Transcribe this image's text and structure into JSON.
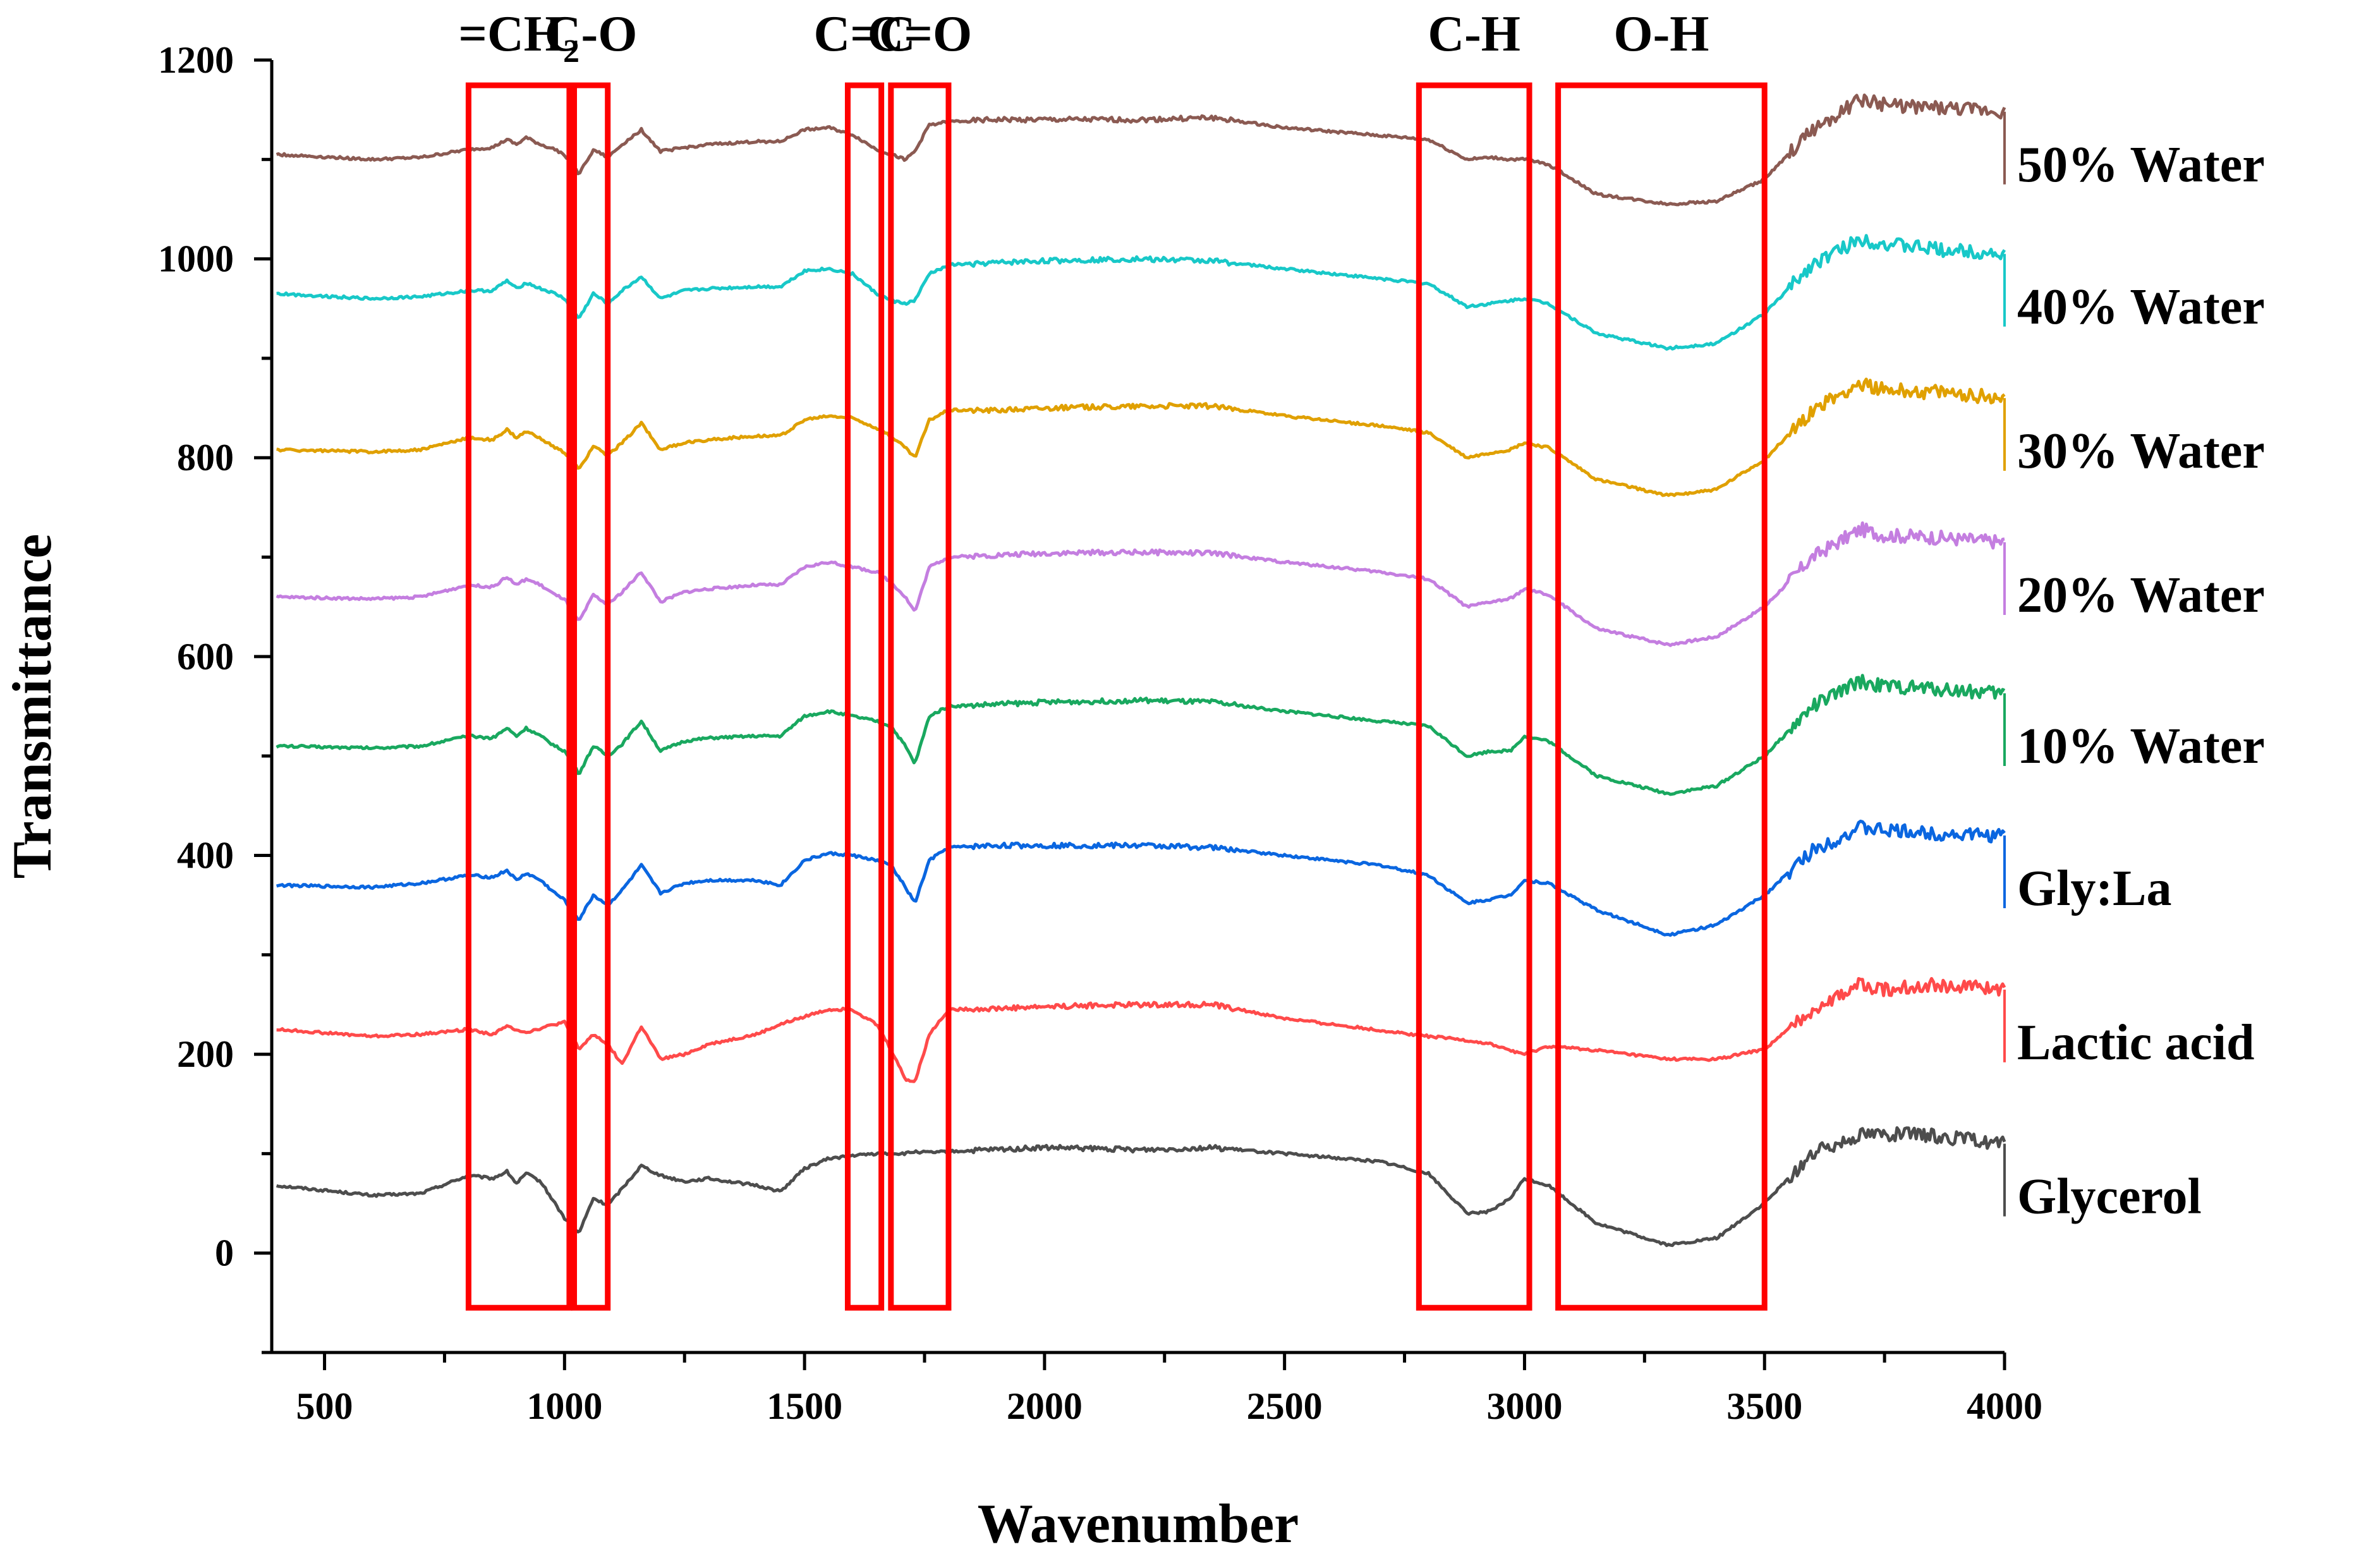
{
  "chart_data": {
    "type": "line",
    "xlabel": "Wavenumber",
    "ylabel": "Transmittance",
    "xlim": [
      390,
      4000
    ],
    "ylim": [
      -100,
      1200
    ],
    "x_ticks": [
      "500",
      "1000",
      "1500",
      "2000",
      "2500",
      "3000",
      "3500",
      "4000"
    ],
    "y_ticks": [
      "0",
      "200",
      "400",
      "600",
      "800",
      "1000",
      "1200"
    ],
    "grid": false,
    "legend": "inline-right",
    "bands": [
      {
        "label": "=CH",
        "subscript": "2",
        "x_range": [
          800,
          1010
        ]
      },
      {
        "label": "C-O",
        "subscript": "",
        "x_range": [
          1020,
          1090
        ]
      },
      {
        "label": "C=C",
        "subscript": "",
        "x_range": [
          1590,
          1660
        ]
      },
      {
        "label": "C=O",
        "subscript": "",
        "x_range": [
          1680,
          1800
        ]
      },
      {
        "label": "C-H",
        "subscript": "",
        "x_range": [
          2780,
          3010
        ]
      },
      {
        "label": "O-H",
        "subscript": "",
        "x_range": [
          3070,
          3500
        ]
      }
    ],
    "x": [
      400,
      600,
      700,
      800,
      850,
      880,
      900,
      920,
      950,
      980,
      1000,
      1030,
      1060,
      1090,
      1120,
      1160,
      1200,
      1250,
      1300,
      1400,
      1450,
      1500,
      1550,
      1600,
      1650,
      1680,
      1710,
      1730,
      1760,
      1800,
      1900,
      2000,
      2200,
      2350,
      2500,
      2700,
      2800,
      2880,
      2930,
      2970,
      3000,
      3050,
      3150,
      3300,
      3400,
      3500,
      3600,
      3700,
      3750,
      3850,
      4000
    ],
    "series": [
      {
        "name": "Glycerol",
        "color": "#4d4d4d",
        "values": [
          68,
          58,
          60,
          78,
          75,
          82,
          70,
          80,
          72,
          50,
          35,
          20,
          55,
          48,
          65,
          88,
          78,
          72,
          75,
          68,
          62,
          85,
          95,
          98,
          100,
          100,
          100,
          102,
          101,
          102,
          104,
          106,
          104,
          106,
          100,
          92,
          80,
          40,
          42,
          55,
          75,
          68,
          30,
          8,
          15,
          50,
          100,
          120,
          120,
          118,
          110
        ]
      },
      {
        "name": "Lactic acid",
        "color": "#ff4a4a",
        "values": [
          225,
          218,
          220,
          225,
          220,
          228,
          225,
          222,
          226,
          230,
          232,
          205,
          220,
          210,
          190,
          228,
          195,
          200,
          210,
          220,
          230,
          238,
          245,
          245,
          230,
          205,
          175,
          172,
          220,
          245,
          246,
          248,
          250,
          250,
          236,
          224,
          218,
          214,
          210,
          204,
          200,
          208,
          204,
          195,
          195,
          205,
          245,
          270,
          265,
          270,
          265
        ]
      },
      {
        "name": "Gly:La",
        "color": "#0a66e0",
        "values": [
          370,
          368,
          372,
          380,
          378,
          385,
          375,
          382,
          375,
          362,
          355,
          335,
          360,
          350,
          365,
          390,
          362,
          372,
          375,
          375,
          370,
          395,
          402,
          400,
          395,
          390,
          368,
          352,
          395,
          408,
          410,
          410,
          410,
          408,
          400,
          390,
          380,
          352,
          356,
          360,
          375,
          372,
          345,
          320,
          330,
          360,
          405,
          428,
          425,
          422,
          420
        ]
      },
      {
        "name": "10% Water",
        "color": "#19a85f",
        "values": [
          510,
          508,
          510,
          520,
          518,
          528,
          520,
          528,
          520,
          510,
          505,
          482,
          510,
          500,
          512,
          535,
          505,
          515,
          518,
          520,
          520,
          540,
          545,
          540,
          535,
          530,
          510,
          492,
          540,
          550,
          552,
          554,
          556,
          554,
          545,
          535,
          530,
          500,
          505,
          505,
          520,
          515,
          480,
          462,
          470,
          500,
          550,
          575,
          570,
          568,
          563
        ]
      },
      {
        "name": "20% Water",
        "color": "#c47ee0",
        "values": [
          660,
          658,
          660,
          672,
          670,
          680,
          672,
          678,
          672,
          662,
          658,
          635,
          662,
          652,
          665,
          685,
          655,
          665,
          668,
          672,
          672,
          690,
          695,
          690,
          685,
          675,
          660,
          645,
          690,
          700,
          702,
          704,
          705,
          704,
          695,
          685,
          678,
          650,
          655,
          658,
          668,
          662,
          628,
          612,
          620,
          650,
          700,
          728,
          722,
          720,
          715
        ]
      },
      {
        "name": "30% Water",
        "color": "#e0a000",
        "values": [
          808,
          806,
          808,
          820,
          818,
          828,
          820,
          826,
          820,
          810,
          805,
          788,
          812,
          802,
          815,
          835,
          808,
          815,
          818,
          822,
          822,
          838,
          842,
          840,
          830,
          822,
          810,
          800,
          838,
          848,
          848,
          850,
          852,
          852,
          842,
          832,
          825,
          800,
          805,
          808,
          815,
          810,
          778,
          762,
          768,
          798,
          848,
          875,
          868,
          866,
          860
        ]
      },
      {
        "name": "40% Water",
        "color": "#18c8c8",
        "values": [
          965,
          960,
          962,
          968,
          968,
          978,
          970,
          976,
          970,
          965,
          960,
          940,
          965,
          955,
          968,
          982,
          960,
          968,
          970,
          972,
          972,
          988,
          990,
          985,
          965,
          958,
          955,
          958,
          985,
          994,
          996,
          998,
          1000,
          998,
          990,
          980,
          975,
          952,
          955,
          958,
          960,
          955,
          925,
          910,
          915,
          945,
          995,
          1020,
          1015,
          1010,
          1005
        ]
      },
      {
        "name": "50% Water",
        "color": "#8b5a52",
        "values": [
          1105,
          1100,
          1102,
          1110,
          1112,
          1120,
          1115,
          1122,
          1115,
          1110,
          1105,
          1085,
          1110,
          1102,
          1115,
          1130,
          1108,
          1112,
          1115,
          1118,
          1118,
          1130,
          1132,
          1125,
          1110,
          1105,
          1100,
          1108,
          1135,
          1138,
          1140,
          1140,
          1140,
          1142,
          1132,
          1124,
          1120,
          1100,
          1102,
          1100,
          1100,
          1095,
          1065,
          1055,
          1058,
          1080,
          1130,
          1160,
          1155,
          1152,
          1148
        ]
      }
    ]
  }
}
